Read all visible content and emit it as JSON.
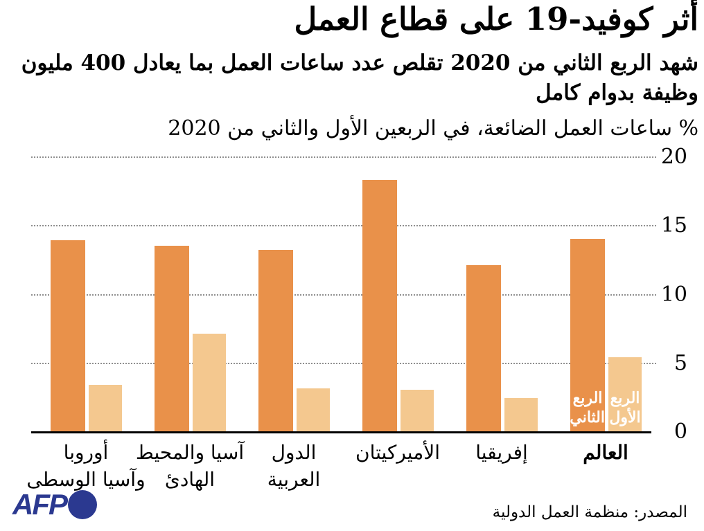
{
  "header": {
    "title": "أثر كوفيد-19 على قطاع العمل",
    "subtitle_lines": [
      "شهد الربع الثاني من 2020 تقلص عدد ساعات العمل بما يعادل 400 مليون",
      "وظيفة بدوام كامل"
    ]
  },
  "chart_data": {
    "type": "bar",
    "title": "% ساعات العمل الضائعة، في الربعين الأول والثاني من 2020",
    "categories": [
      {
        "key": "europe-central-asia",
        "lines": [
          "أوروبا",
          "وآسيا الوسطى"
        ],
        "bold": false
      },
      {
        "key": "asia-pacific",
        "lines": [
          "آسيا والمحيط",
          "الهادئ"
        ],
        "bold": false
      },
      {
        "key": "arab-states",
        "lines": [
          "الدول",
          "العربية"
        ],
        "bold": false
      },
      {
        "key": "americas",
        "lines": [
          "الأميركيتان"
        ],
        "bold": false
      },
      {
        "key": "africa",
        "lines": [
          "إفريقيا"
        ],
        "bold": false
      },
      {
        "key": "world",
        "lines": [
          "العالم"
        ],
        "bold": true
      }
    ],
    "series": [
      {
        "key": "q2",
        "name": "الربع الثاني",
        "name_lines": [
          "الربع",
          "الثاني"
        ],
        "color": "#e9914a",
        "values": [
          13.9,
          13.5,
          13.2,
          18.3,
          12.1,
          14.0
        ]
      },
      {
        "key": "q1",
        "name": "الربع الأول",
        "name_lines": [
          "الربع",
          "الأول"
        ],
        "color": "#f4c88f",
        "values": [
          3.4,
          7.1,
          3.1,
          3.0,
          2.4,
          5.4
        ]
      }
    ],
    "legend_in_last_group": true,
    "ylim": [
      0,
      20
    ],
    "yticks": [
      0,
      5,
      10,
      15,
      20
    ],
    "grid": "dotted-horizontal",
    "colors": {
      "q2_bar": "#e9914a",
      "q1_bar": "#f4c88f",
      "gridline": "#8f8f8f",
      "axis": "#000000",
      "bar_label_text": "#ffffff"
    }
  },
  "footer": {
    "source": "المصدر: منظمة العمل الدولية",
    "logo_text": "AFP",
    "logo_color": "#2b3990"
  }
}
